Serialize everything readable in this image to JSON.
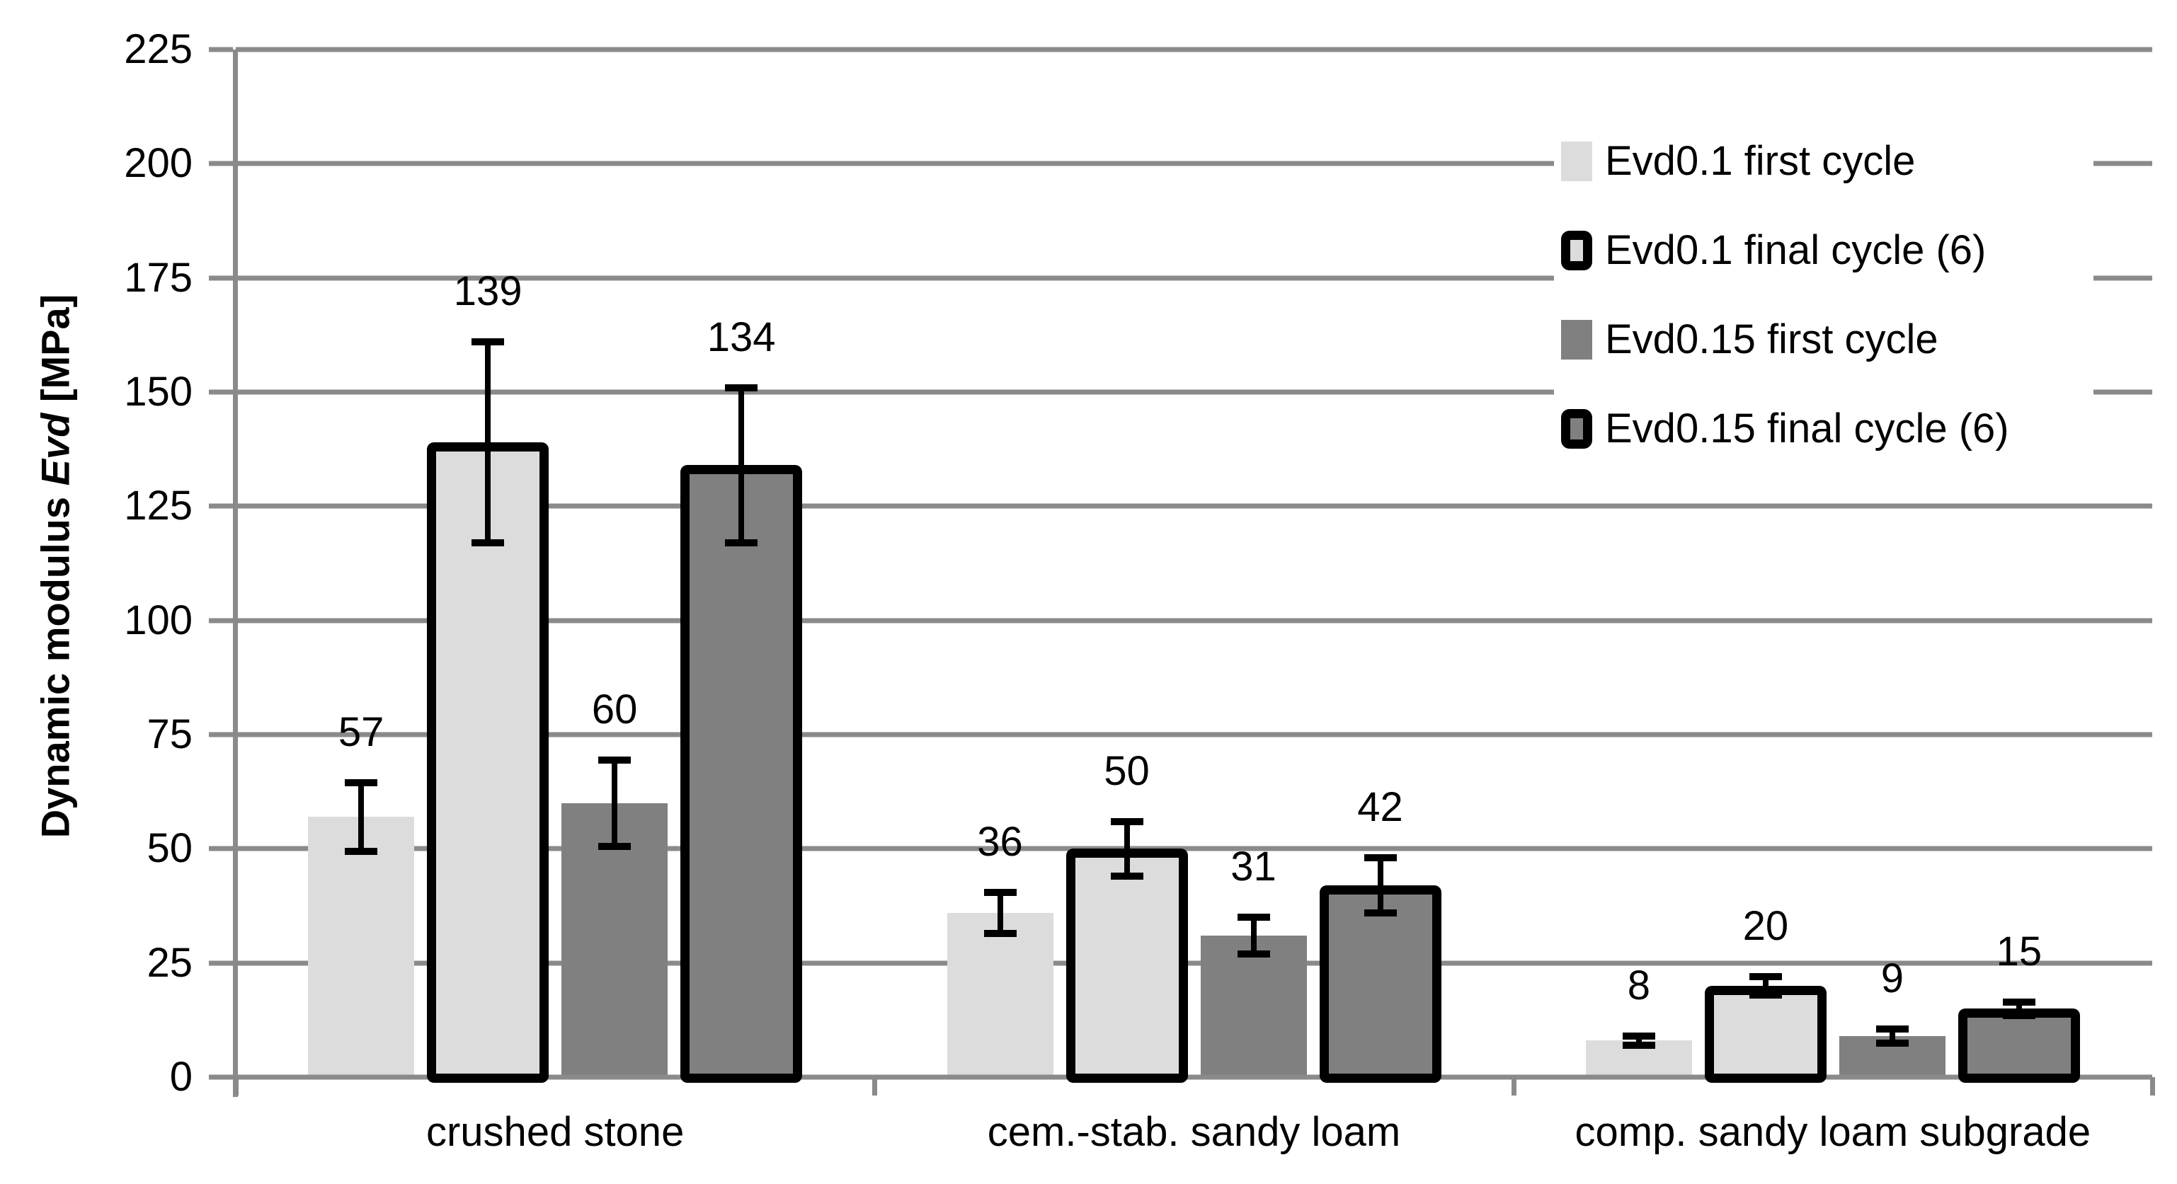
{
  "chart_data": {
    "type": "bar",
    "title": "",
    "ylabel": "Dynamic modulus Evd [MPa]",
    "ylabel_parts": {
      "prefix": "Dynamic modulus ",
      "italic": "Evd",
      "suffix": " [MPa]"
    },
    "categories": [
      "crushed stone",
      "cem.-stab. sandy loam",
      "comp. sandy loam subgrade"
    ],
    "series": [
      {
        "name": "Evd0.1 first cycle",
        "style": "plain",
        "fill": "#DCDCDC",
        "values": [
          57,
          36,
          8
        ],
        "errors": [
          7.5,
          4.5,
          1
        ]
      },
      {
        "name": "Evd0.1 final cycle (6)",
        "style": "bordered",
        "fill": "#DCDCDC",
        "values": [
          139,
          50,
          20
        ],
        "errors": [
          22,
          6,
          2
        ]
      },
      {
        "name": "Evd0.15 first cycle",
        "style": "plain",
        "fill": "#808080",
        "values": [
          60,
          31,
          9
        ],
        "errors": [
          9.5,
          4,
          1.5
        ]
      },
      {
        "name": "Evd0.15 final cycle (6)",
        "style": "bordered",
        "fill": "#808080",
        "values": [
          134,
          42,
          15
        ],
        "errors": [
          17,
          6,
          1.5
        ]
      }
    ],
    "data_labels": [
      [
        57,
        36,
        8
      ],
      [
        139,
        50,
        20
      ],
      [
        60,
        31,
        9
      ],
      [
        134,
        42,
        15
      ]
    ],
    "y_ticks": [
      0,
      25,
      50,
      75,
      100,
      125,
      150,
      175,
      200,
      225
    ],
    "ylim": [
      0,
      225
    ],
    "grid": true,
    "error_bars": true,
    "legend_position": "upper-right",
    "colors": {
      "gridline": "#8A8A8A",
      "axis": "#8A8A8A",
      "bar_light": "#DCDCDC",
      "bar_dark": "#808080",
      "bar_border": "#000000",
      "text": "#000000",
      "background": "#FFFFFF"
    }
  }
}
